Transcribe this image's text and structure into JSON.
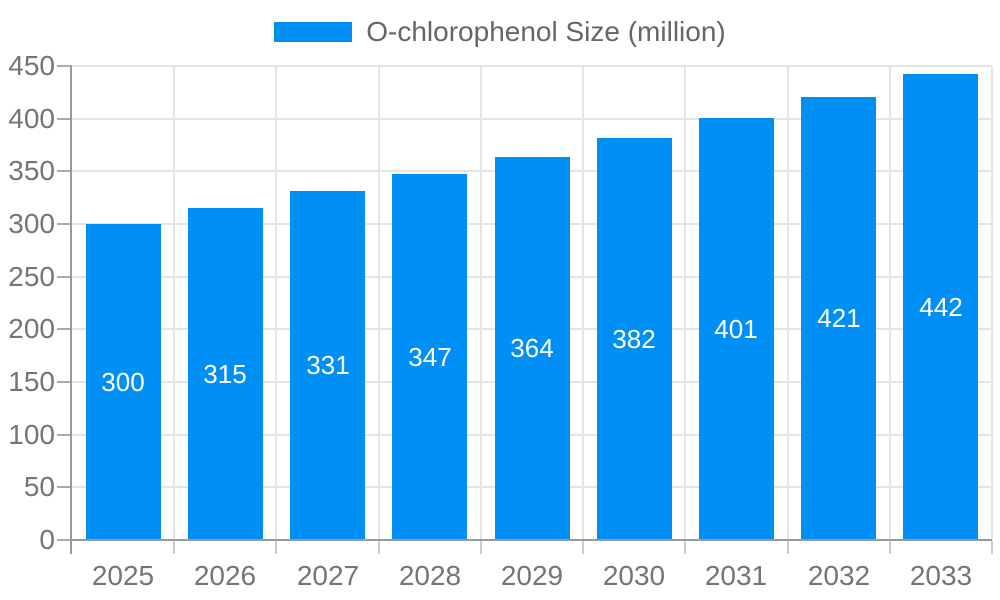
{
  "legend": {
    "label": "O-chlorophenol Size (million)"
  },
  "colors": {
    "bar": "#008FF5",
    "grid": "#E4E4E4",
    "axis": "#999999",
    "y_tick": "#AAAAAA",
    "x_tick": "#CCCCCC",
    "tick_text": "#757575",
    "legend_text": "#666666",
    "bar_label_text": "#FFFFFF",
    "background": "#FFFFFF"
  },
  "chart_data": {
    "type": "bar",
    "title": "O-chlorophenol Size (million)",
    "series_name": "O-chlorophenol Size (million)",
    "categories": [
      "2025",
      "2026",
      "2027",
      "2028",
      "2029",
      "2030",
      "2031",
      "2032",
      "2033"
    ],
    "values": [
      300,
      315,
      331,
      347,
      364,
      382,
      401,
      421,
      442
    ],
    "xlabel": "",
    "ylabel": "",
    "ylim": [
      0,
      450
    ],
    "ytick_step": 50,
    "ytick_labels": [
      "0",
      "50",
      "100",
      "150",
      "200",
      "250",
      "300",
      "350",
      "400",
      "450"
    ],
    "grid": "on",
    "legend_position": "top-center",
    "bar_label_position": "inside-center"
  }
}
